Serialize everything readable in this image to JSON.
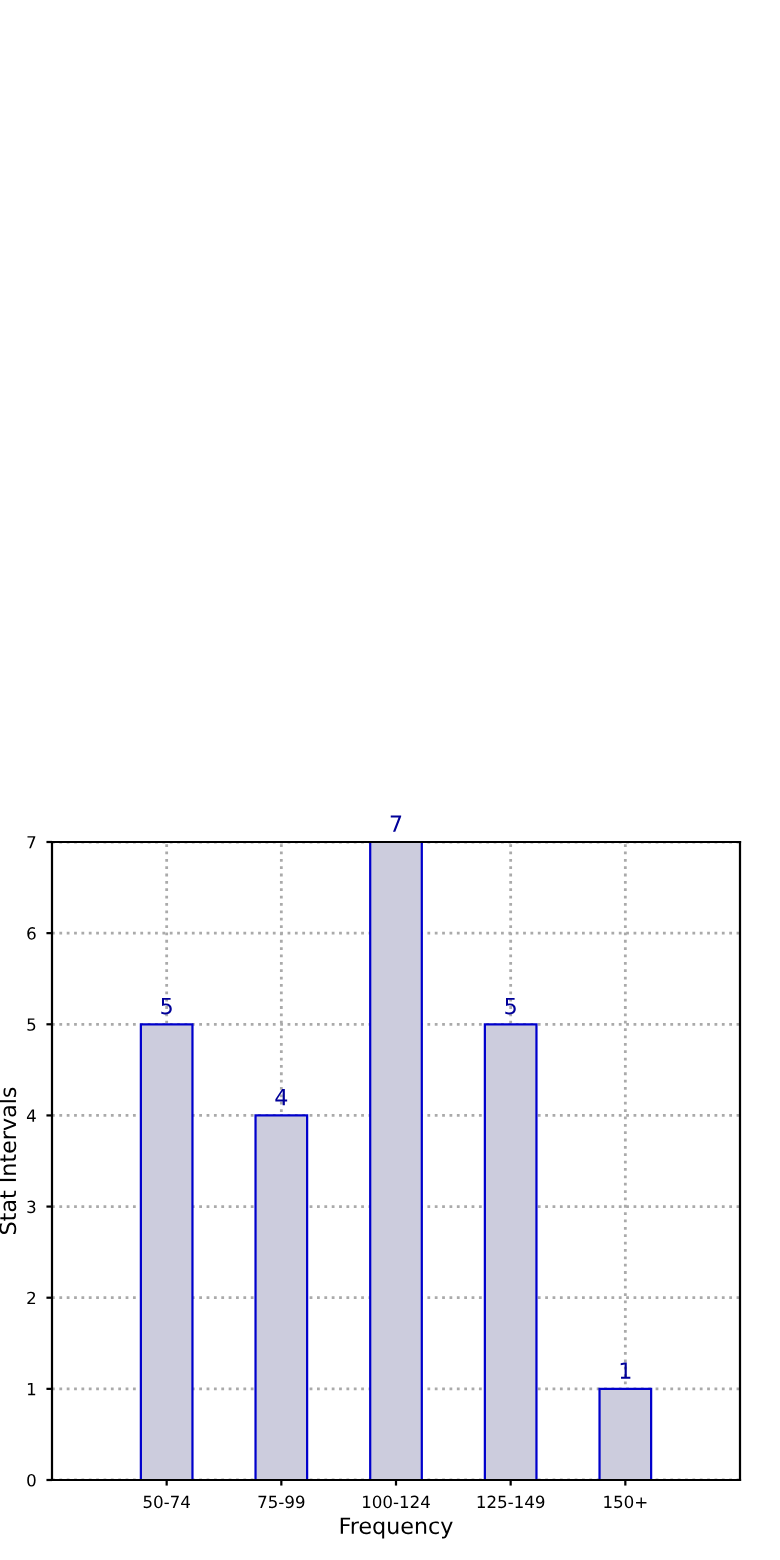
{
  "chart_data": {
    "type": "bar",
    "xlabel": "Frequency",
    "ylabel": "Stat Intervals",
    "categories": [
      "50-74",
      "75-99",
      "100-124",
      "125-149",
      "150+"
    ],
    "values": [
      5,
      4,
      7,
      5,
      1
    ],
    "color": "#ccccdd",
    "ylim": [
      0,
      7
    ],
    "yticks": [
      0,
      1,
      2,
      3,
      4,
      5,
      6,
      7
    ],
    "grid": true,
    "data_labels": true
  }
}
